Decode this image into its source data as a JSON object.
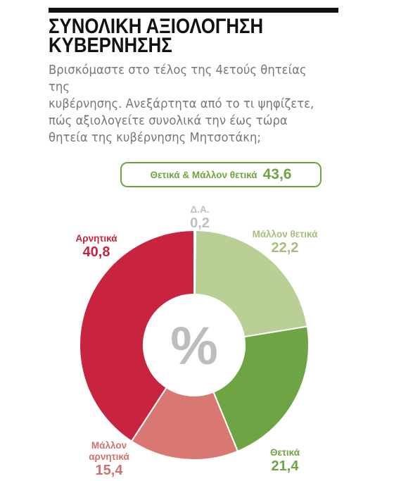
{
  "header": {
    "title_line1": "ΣΥΝΟΛΙΚΗ ΑΞΙΟΛΟΓΗΣΗ",
    "title_line2": "ΚΥΒΕΡΝΗΣΗΣ",
    "subtitle_line1": "Βρισκόμαστε στο τέλος της 4ετούς θητείας της",
    "subtitle_line2": "κυβέρνησης. Ανεξάρτητα από το τι ψηφίζετε,",
    "subtitle_line3": "πώς αξιολογείτε συνολικά την έως τώρα",
    "subtitle_line4": "θητεία της κυβέρνησης Μητσοτάκη;"
  },
  "summary": {
    "label": "Θετικά & Μάλλον θετικά",
    "value": "43,6"
  },
  "center_symbol": "%",
  "colors": {
    "positive_dark": "#6da544",
    "positive_light": "#b9cf96",
    "negative_dark": "#c8233f",
    "negative_light": "#d97872",
    "dk": "#bfbfbf",
    "center_symbol": "#bdbdbd"
  },
  "chart_data": {
    "type": "pie",
    "title": "ΣΥΝΟΛΙΚΗ ΑΞΙΟΛΟΓΗΣΗ ΚΥΒΕΡΝΗΣΗΣ",
    "donut": true,
    "slices": [
      {
        "label": "Δ.Α.",
        "value": 0.2,
        "display": "0,2",
        "color": "#bfbfbf"
      },
      {
        "label": "Μάλλον θετικά",
        "value": 22.2,
        "display": "22,2",
        "color": "#b9cf96"
      },
      {
        "label": "Θετικά",
        "value": 21.4,
        "display": "21,4",
        "color": "#6da544"
      },
      {
        "label": "Μάλλον αρνητικά",
        "value": 15.4,
        "display": "15,4",
        "color": "#d97872"
      },
      {
        "label": "Αρνητικά",
        "value": 40.8,
        "display": "40,8",
        "color": "#c8233f"
      }
    ]
  },
  "labels": {
    "dk": {
      "name": "Δ.Α.",
      "value": "0,2"
    },
    "rather_positive": {
      "name": "Μάλλον θετικά",
      "value": "22,2"
    },
    "positive": {
      "name": "Θετικά",
      "value": "21,4"
    },
    "rather_negative_l1": "Μάλλον",
    "rather_negative_l2": "αρνητικά",
    "rather_negative_value": "15,4",
    "negative": {
      "name": "Αρνητικά",
      "value": "40,8"
    }
  }
}
